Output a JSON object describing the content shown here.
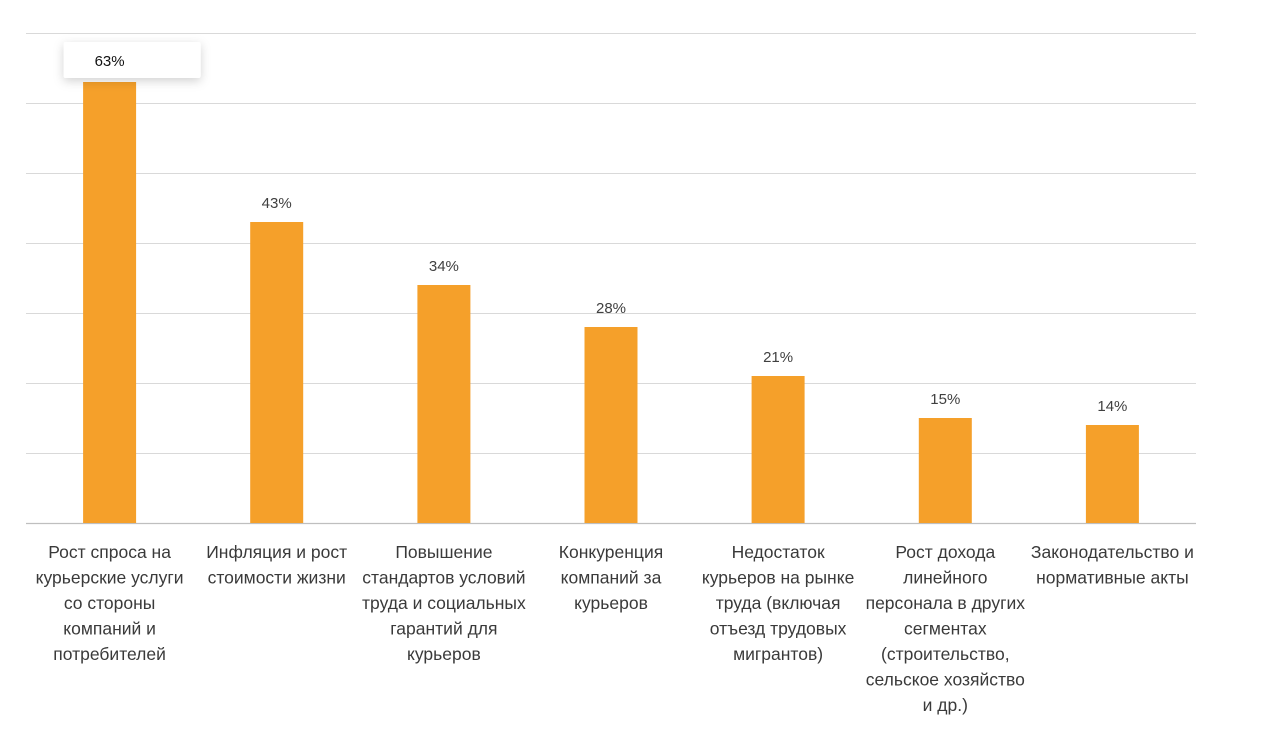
{
  "chart_data": {
    "type": "bar",
    "categories": [
      [
        "Рост спроса на",
        "курьерские услуги",
        "со стороны",
        "компаний и",
        "потребителей"
      ],
      [
        "Инфляция и рост",
        "стоимости жизни"
      ],
      [
        "Повышение",
        "стандартов условий",
        "труда и социальных",
        "гарантий для",
        "курьеров"
      ],
      [
        "Конкуренция",
        "компаний за",
        "курьеров"
      ],
      [
        "Недостаток",
        "курьеров на рынке",
        "труда (включая",
        "отъезд трудовых",
        "мигрантов)"
      ],
      [
        "Рост дохода",
        "линейного",
        "персонала в других",
        "сегментах",
        "(строительство,",
        "сельское хозяйство",
        "и др.)"
      ],
      [
        "Законодательство и",
        "нормативные акты"
      ]
    ],
    "values": [
      63,
      43,
      34,
      28,
      21,
      15,
      14
    ],
    "data_labels": [
      "63%",
      "43%",
      "34%",
      "28%",
      "21%",
      "15%",
      "14%"
    ],
    "title": "",
    "xlabel": "",
    "ylabel": "",
    "ylim": [
      0,
      70
    ],
    "y_gridline_step": 10,
    "grid": true,
    "y_tick_labels_shown": false,
    "legend": "none",
    "highlighted_label_index": 0,
    "colors": {
      "bar": "#F5A02A",
      "gridline": "#D9D9D9",
      "axis": "#BFBFBF",
      "value_text": "#404040",
      "category_text": "#3A3A3A"
    }
  }
}
